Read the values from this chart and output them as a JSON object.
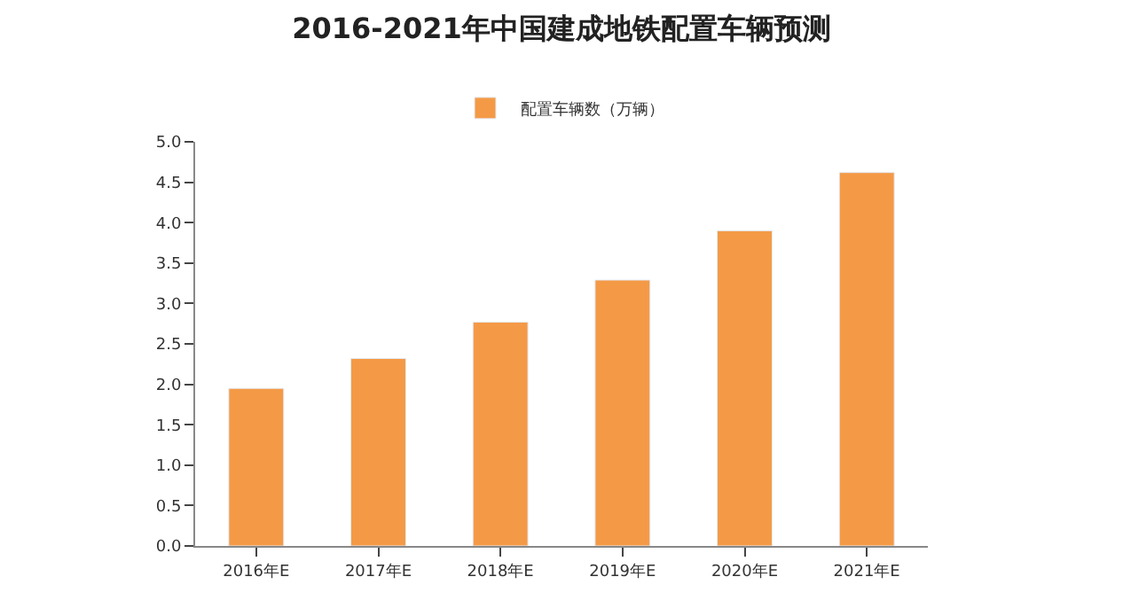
{
  "chart_data": {
    "type": "bar",
    "title": "2016-2021年中国建成地铁配置车辆预测",
    "categories": [
      "2016年E",
      "2017年E",
      "2018年E",
      "2019年E",
      "2020年E",
      "2021年E"
    ],
    "series": [
      {
        "name": "配置车辆数（万辆）",
        "color": "#f49a46",
        "values": [
          1.95,
          2.32,
          2.77,
          3.29,
          3.9,
          4.62
        ]
      }
    ],
    "ylim": [
      0,
      5
    ],
    "yticks": [
      {
        "value": 0,
        "label": "0.0"
      },
      0.5,
      {
        "value": 1,
        "label": "1.0"
      },
      1.5,
      {
        "value": 2,
        "label": "2.0"
      },
      2.5,
      {
        "value": 3,
        "label": "3.0"
      },
      3.5,
      {
        "value": 4,
        "label": "4.0"
      },
      4.5,
      {
        "value": 5,
        "label": "5.0"
      }
    ],
    "legend": "top"
  }
}
